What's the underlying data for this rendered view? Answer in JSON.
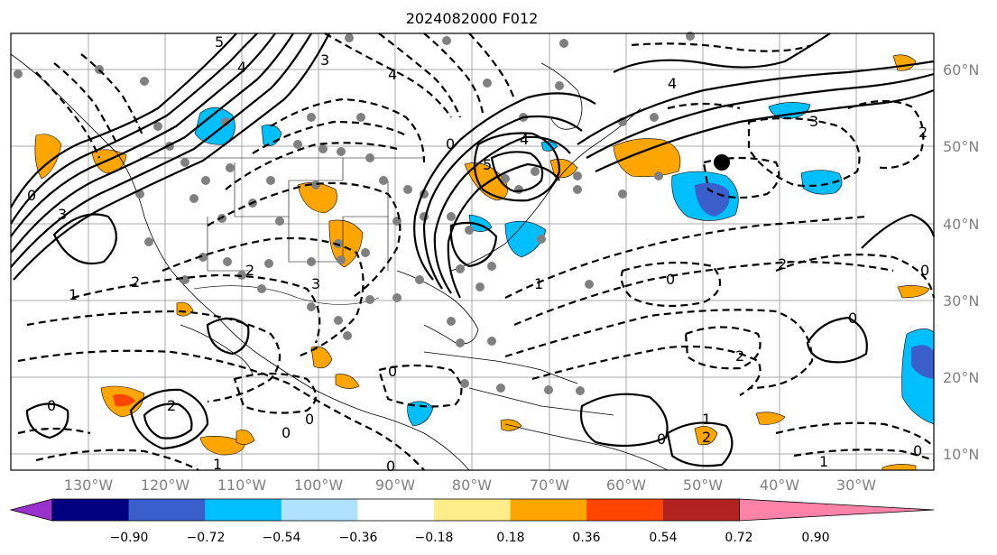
{
  "title": "2024082000 F012",
  "lat_labels": [
    "60°N",
    "50°N",
    "40°N",
    "30°N",
    "20°N",
    "10°N"
  ],
  "lon_labels": [
    "130°W",
    "120°W",
    "110°W",
    "100°W",
    "90°W",
    "80°W",
    "70°W",
    "60°W",
    "50°W",
    "40°W",
    "30°W"
  ],
  "contour_labels": {
    "l1": "4",
    "l2": "4",
    "l3": "5",
    "l4": "4",
    "l5": "3",
    "l6": "2",
    "l7": "0",
    "l8": "3",
    "l9": "0",
    "l10": "2",
    "l11": "1",
    "l12": "2",
    "l13": "3",
    "l14": "0",
    "l15": "1",
    "l16": "0",
    "l17": "0",
    "l18": "0",
    "l19": "2",
    "l20": "1",
    "l21": "0",
    "l22": "2",
    "l23": "0",
    "l24": "2",
    "l25": "1",
    "l26": "0",
    "l27": "0",
    "l28": "1",
    "l29": "3",
    "l30": "4",
    "l31": "5",
    "l32": "0",
    "l33": "2",
    "l34": "0"
  },
  "colorbar": {
    "ticks": [
      "−0.90",
      "−0.72",
      "−0.54",
      "−0.36",
      "−0.18",
      "0.18",
      "0.36",
      "0.54",
      "0.72",
      "0.90"
    ],
    "colors": [
      "#9932cc",
      "#000080",
      "#3a5fcd",
      "#00bfff",
      "#b0e2ff",
      "#ffffff",
      "#ffec8b",
      "#ffa500",
      "#ff4500",
      "#b22222",
      "#ff82ab"
    ]
  }
}
